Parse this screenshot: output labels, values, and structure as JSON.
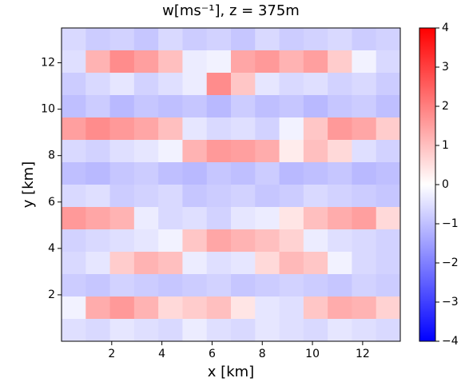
{
  "chart_data": {
    "type": "heatmap",
    "title": "w[ms⁻¹], z = 375m",
    "xlabel": "x [km]",
    "ylabel": "y [km]",
    "xlim": [
      0,
      13.5
    ],
    "ylim": [
      0,
      13.5
    ],
    "xticks": [
      2,
      4,
      6,
      8,
      10,
      12
    ],
    "yticks": [
      2,
      4,
      6,
      8,
      10,
      12
    ],
    "colormap": "bwr",
    "zlim": [
      -4,
      4
    ],
    "colorbar_ticks": [
      4,
      3,
      2,
      1,
      0,
      {
        "value": -1,
        "label": "−1"
      },
      {
        "value": -2,
        "label": "−2"
      },
      {
        "value": -3,
        "label": "−3"
      },
      {
        "value": -4,
        "label": "−4"
      }
    ],
    "z": [
      [
        -0.6,
        -0.8,
        -0.7,
        -0.9,
        -0.6,
        -0.8,
        -0.7,
        -0.9,
        -0.6,
        -0.8,
        -0.7,
        -0.6,
        -0.8,
        -0.7
      ],
      [
        -0.5,
        1.2,
        1.8,
        1.5,
        1.0,
        -0.3,
        -0.2,
        1.4,
        1.6,
        1.2,
        1.5,
        0.8,
        -0.2,
        -0.6
      ],
      [
        -0.8,
        -0.6,
        -0.4,
        -0.7,
        -0.5,
        -0.3,
        1.8,
        0.9,
        -0.4,
        -0.6,
        -0.5,
        -0.7,
        -0.6,
        -0.8
      ],
      [
        -1.0,
        -0.8,
        -1.1,
        -0.9,
        -1.0,
        -0.9,
        -1.1,
        -0.8,
        -1.0,
        -0.9,
        -1.1,
        -0.9,
        -0.8,
        -1.0
      ],
      [
        1.5,
        1.8,
        1.6,
        1.4,
        1.0,
        -0.4,
        -0.6,
        -0.5,
        -0.7,
        -0.2,
        0.9,
        1.6,
        1.4,
        0.8
      ],
      [
        -0.6,
        -0.7,
        -0.5,
        -0.4,
        -0.2,
        1.2,
        1.6,
        1.5,
        1.3,
        0.3,
        1.0,
        0.6,
        -0.5,
        -0.7
      ],
      [
        -1.0,
        -1.1,
        -0.9,
        -0.8,
        -1.0,
        -1.1,
        -0.9,
        -1.0,
        -0.8,
        -1.1,
        -1.0,
        -0.9,
        -1.1,
        -1.0
      ],
      [
        -0.6,
        -0.5,
        -0.8,
        -0.7,
        -0.6,
        -0.9,
        -0.8,
        -0.7,
        -0.9,
        -0.8,
        -0.6,
        -0.7,
        -0.8,
        -0.9
      ],
      [
        1.6,
        1.4,
        1.2,
        -0.3,
        -0.6,
        -0.5,
        -0.7,
        -0.4,
        -0.3,
        0.4,
        1.0,
        1.3,
        1.5,
        0.6
      ],
      [
        -0.7,
        -0.6,
        -0.5,
        -0.4,
        -0.2,
        0.9,
        1.4,
        1.2,
        1.0,
        0.7,
        -0.3,
        -0.5,
        -0.6,
        -0.7
      ],
      [
        -0.6,
        -0.4,
        0.8,
        1.2,
        1.0,
        -0.3,
        -0.5,
        -0.4,
        0.6,
        1.1,
        0.9,
        -0.2,
        -0.6,
        -0.7
      ],
      [
        -0.8,
        -0.9,
        -0.7,
        -0.8,
        -0.9,
        -0.8,
        -0.7,
        -0.9,
        -0.8,
        -0.7,
        -0.8,
        -0.9,
        -0.7,
        -0.8
      ],
      [
        -0.2,
        1.3,
        1.6,
        1.2,
        0.6,
        0.8,
        1.0,
        0.4,
        -0.4,
        -0.5,
        0.9,
        1.3,
        1.2,
        0.7
      ],
      [
        -0.5,
        -0.6,
        -0.4,
        -0.5,
        -0.6,
        -0.3,
        -0.5,
        -0.6,
        -0.4,
        -0.5,
        -0.6,
        -0.4,
        -0.5,
        -0.6
      ]
    ]
  }
}
